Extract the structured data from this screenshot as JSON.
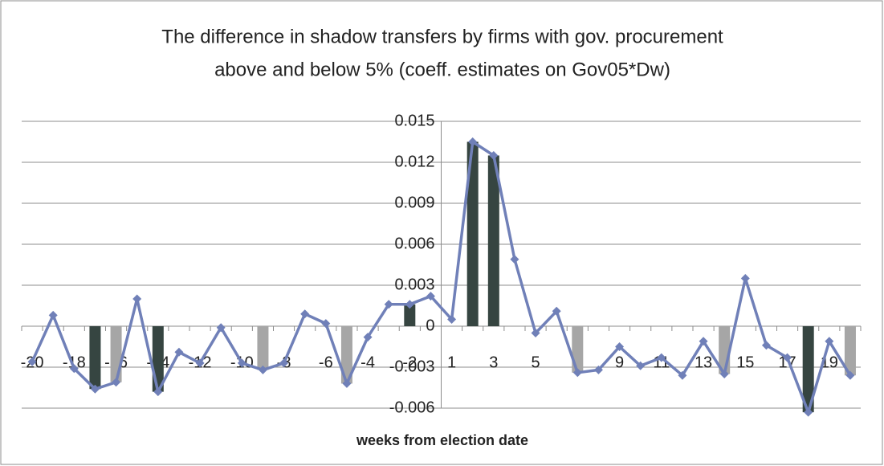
{
  "chart_data": {
    "type": "bar",
    "title": [
      "The difference in shadow transfers by firms with gov. procurement",
      "above and below 5%  (coeff. estimates on Gov05*Dw)"
    ],
    "x_label": "weeks from election date",
    "categories": [
      "-20",
      null,
      "-18",
      null,
      "-16",
      null,
      "-14",
      null,
      "-12",
      null,
      "-10",
      null,
      "-8",
      null,
      "-6",
      null,
      "-4",
      null,
      "-2",
      null,
      "1",
      null,
      "3",
      null,
      "5",
      null,
      "7",
      null,
      "9",
      null,
      "11",
      null,
      "13",
      null,
      "15",
      null,
      "17",
      null,
      "19",
      null
    ],
    "series": [
      {
        "type": "bar",
        "color": "#364541",
        "values": [
          null,
          null,
          null,
          -0.0046,
          null,
          null,
          -0.0048,
          null,
          null,
          null,
          null,
          null,
          null,
          null,
          null,
          null,
          null,
          null,
          0.0016,
          null,
          null,
          0.0135,
          0.0125,
          null,
          null,
          null,
          null,
          null,
          null,
          null,
          null,
          null,
          null,
          null,
          null,
          null,
          null,
          -0.0063,
          null,
          null
        ]
      },
      {
        "type": "bar",
        "color": "#a6a6a6",
        "values": [
          null,
          null,
          null,
          null,
          -0.0041,
          null,
          null,
          null,
          null,
          null,
          null,
          -0.0032,
          null,
          null,
          null,
          -0.0042,
          null,
          null,
          null,
          null,
          null,
          null,
          null,
          null,
          null,
          null,
          -0.0034,
          null,
          null,
          null,
          null,
          null,
          null,
          -0.0035,
          null,
          null,
          null,
          null,
          null,
          -0.0036
        ]
      },
      {
        "type": "line",
        "color": "#7080b8",
        "values": [
          -0.0026,
          0.0008,
          -0.0031,
          -0.0046,
          -0.0041,
          0.002,
          -0.0048,
          -0.0019,
          -0.0027,
          -0.0001,
          -0.0027,
          -0.0032,
          -0.0027,
          0.0009,
          0.0002,
          -0.0042,
          -0.0008,
          0.0016,
          0.0016,
          0.0022,
          0.0005,
          0.0135,
          0.0125,
          0.0049,
          -0.0005,
          0.0011,
          -0.0034,
          -0.0032,
          -0.0015,
          -0.0029,
          -0.0023,
          -0.0036,
          -0.0011,
          -0.0035,
          0.0035,
          -0.0014,
          -0.0023,
          -0.0063,
          -0.0011,
          -0.0036
        ]
      }
    ],
    "ylim": [
      -0.006,
      0.015
    ],
    "yticks": [
      -0.006,
      -0.003,
      0,
      0.003,
      0.006,
      0.009,
      0.012,
      0.015
    ],
    "grid": true
  }
}
